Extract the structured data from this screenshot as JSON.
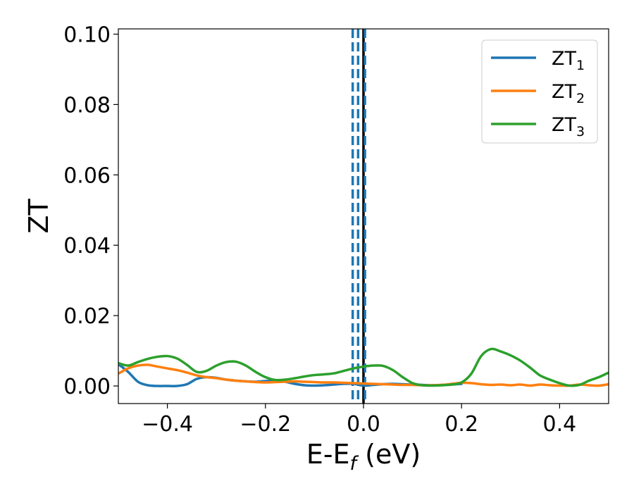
{
  "chart_data": {
    "type": "line",
    "xlabel": "E-E",
    "xlabel_sub": "f",
    "xlabel_unit": " (eV)",
    "ylabel": "ZT",
    "xlim": [
      -0.5,
      0.5
    ],
    "ylim": [
      -0.005,
      0.1015
    ],
    "xticks": [
      -0.4,
      -0.2,
      0.0,
      0.2,
      0.4
    ],
    "xtick_labels": [
      "−0.4",
      "−0.2",
      "0.0",
      "0.2",
      "0.4"
    ],
    "yticks": [
      0.0,
      0.02,
      0.04,
      0.06,
      0.08,
      0.1
    ],
    "ytick_labels": [
      "0.00",
      "0.02",
      "0.04",
      "0.06",
      "0.08",
      "0.10"
    ],
    "grid": false,
    "legend_position": "top-right",
    "vlines": [
      {
        "x": -0.022,
        "style": "dashed",
        "color": "#1f77b4"
      },
      {
        "x": -0.011,
        "style": "dashed",
        "color": "#1f77b4"
      },
      {
        "x": 0.0,
        "style": "solid",
        "color": "#000000"
      },
      {
        "x": 0.003,
        "style": "dashed",
        "color": "#1f77b4"
      }
    ],
    "series": [
      {
        "name": "ZT",
        "name_sub": "1",
        "color": "#1f77b4",
        "x": [
          -0.5,
          -0.48,
          -0.46,
          -0.44,
          -0.42,
          -0.4,
          -0.38,
          -0.36,
          -0.34,
          -0.32,
          -0.3,
          -0.28,
          -0.26,
          -0.24,
          -0.22,
          -0.2,
          -0.18,
          -0.16,
          -0.14,
          -0.12,
          -0.1,
          -0.08,
          -0.06,
          -0.04,
          -0.02,
          0.0,
          0.02,
          0.04,
          0.06,
          0.08,
          0.1,
          0.12,
          0.14,
          0.16,
          0.18,
          0.2
        ],
        "y": [
          0.0062,
          0.004,
          0.0012,
          0.0002,
          0.0,
          0.0,
          0.0,
          0.0005,
          0.002,
          0.0025,
          0.0023,
          0.0018,
          0.0015,
          0.0013,
          0.0012,
          0.0014,
          0.0015,
          0.0012,
          0.0006,
          0.0002,
          0.0001,
          0.0002,
          0.0004,
          0.0006,
          0.0006,
          0.0001,
          0.0003,
          0.0005,
          0.0006,
          0.0005,
          0.0004,
          0.0003,
          0.0002,
          0.0003,
          0.0004,
          0.0006
        ]
      },
      {
        "name": "ZT",
        "name_sub": "2",
        "color": "#ff7f0e",
        "x": [
          -0.5,
          -0.48,
          -0.46,
          -0.44,
          -0.42,
          -0.4,
          -0.38,
          -0.36,
          -0.34,
          -0.32,
          -0.3,
          -0.28,
          -0.26,
          -0.24,
          -0.22,
          -0.2,
          -0.18,
          -0.16,
          -0.14,
          -0.12,
          -0.1,
          -0.08,
          -0.06,
          -0.04,
          -0.02,
          0.0,
          0.02,
          0.04,
          0.06,
          0.08,
          0.1,
          0.12,
          0.14,
          0.16,
          0.18,
          0.2,
          0.22,
          0.24,
          0.26,
          0.28,
          0.3,
          0.32,
          0.34,
          0.36,
          0.38,
          0.4,
          0.42,
          0.44,
          0.46,
          0.48,
          0.5
        ],
        "y": [
          0.0035,
          0.005,
          0.0058,
          0.006,
          0.0055,
          0.005,
          0.0045,
          0.0038,
          0.003,
          0.0025,
          0.0022,
          0.0018,
          0.0015,
          0.0013,
          0.0011,
          0.001,
          0.0011,
          0.0012,
          0.0013,
          0.0012,
          0.0011,
          0.001,
          0.001,
          0.0009,
          0.0008,
          0.0007,
          0.0006,
          0.0005,
          0.0004,
          0.0003,
          0.0003,
          0.0002,
          0.0002,
          0.0003,
          0.0006,
          0.0009,
          0.0008,
          0.0005,
          0.0003,
          0.0004,
          0.0002,
          0.0004,
          0.0001,
          0.0004,
          0.0002,
          0.0001,
          0.0001,
          0.0004,
          0.0002,
          0.0001,
          0.0005
        ]
      },
      {
        "name": "ZT",
        "name_sub": "3",
        "color": "#2ca02c",
        "x": [
          -0.5,
          -0.48,
          -0.46,
          -0.44,
          -0.42,
          -0.4,
          -0.38,
          -0.36,
          -0.34,
          -0.32,
          -0.3,
          -0.28,
          -0.26,
          -0.24,
          -0.22,
          -0.2,
          -0.18,
          -0.16,
          -0.14,
          -0.12,
          -0.1,
          -0.08,
          -0.06,
          -0.04,
          -0.02,
          0.0,
          0.02,
          0.04,
          0.06,
          0.08,
          0.1,
          0.12,
          0.14,
          0.16,
          0.18,
          0.2,
          0.22,
          0.24,
          0.26,
          0.28,
          0.3,
          0.32,
          0.34,
          0.36,
          0.38,
          0.4,
          0.42,
          0.44,
          0.46,
          0.48,
          0.5
        ],
        "y": [
          0.0065,
          0.0058,
          0.0068,
          0.0077,
          0.0083,
          0.0085,
          0.0078,
          0.006,
          0.004,
          0.0043,
          0.0058,
          0.0068,
          0.0069,
          0.0058,
          0.004,
          0.0025,
          0.0017,
          0.0018,
          0.0022,
          0.0027,
          0.0031,
          0.0033,
          0.0036,
          0.0043,
          0.005,
          0.0055,
          0.0058,
          0.0057,
          0.0045,
          0.0025,
          0.0008,
          0.0002,
          0.0001,
          0.0002,
          0.0004,
          0.001,
          0.0035,
          0.0085,
          0.0105,
          0.0098,
          0.0087,
          0.0072,
          0.0052,
          0.003,
          0.0018,
          0.0008,
          0.0001,
          0.0003,
          0.0015,
          0.0025,
          0.0038
        ]
      }
    ]
  }
}
